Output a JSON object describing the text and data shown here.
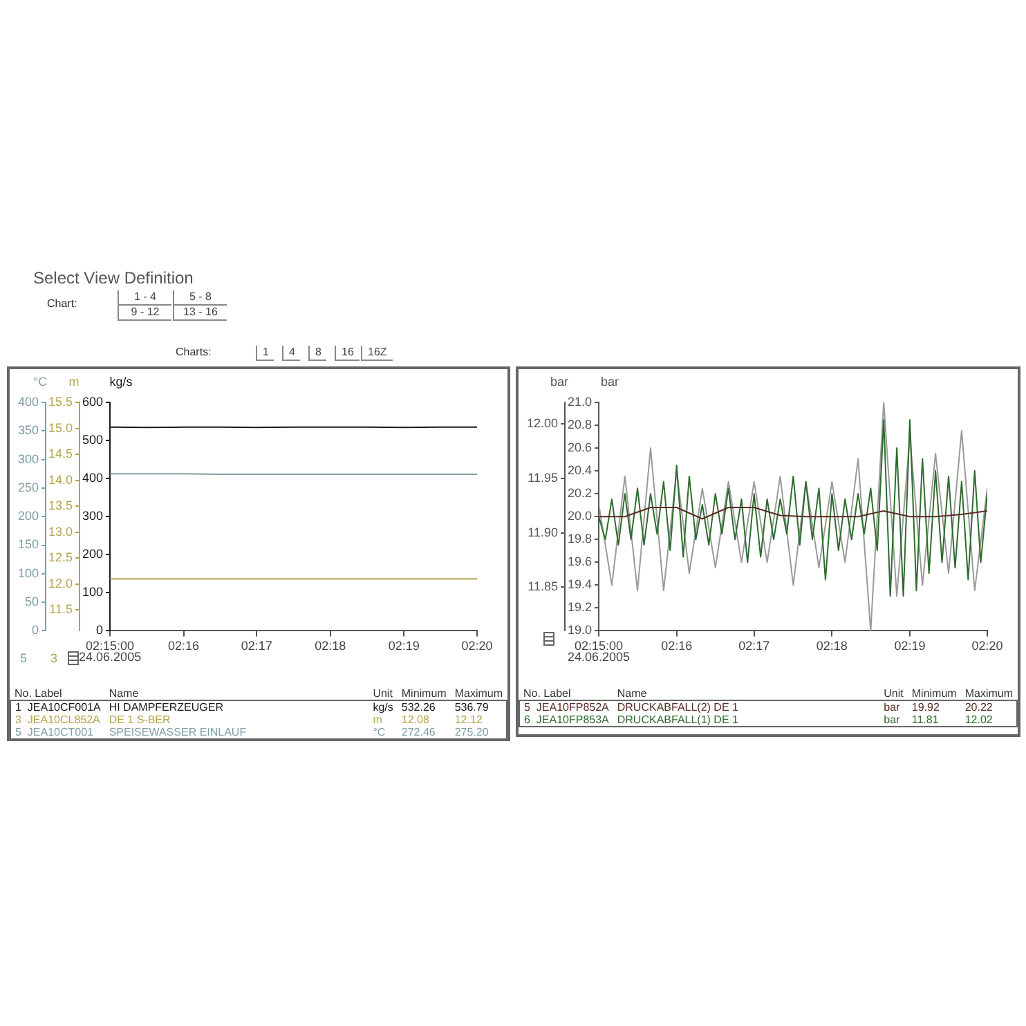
{
  "chart_data": [
    {
      "type": "other",
      "title": "Select View Definition",
      "annotations": [
        "Chart:",
        "1 - 4",
        "5 - 8",
        "9 - 12",
        "13 - 16",
        "Charts:",
        "1",
        "4",
        "8",
        "16",
        "16Z"
      ]
    },
    {
      "type": "line",
      "ylabel": "kg/s",
      "y2label": "m",
      "y3label": "°C",
      "legend": "bottom",
      "x": [
        2.25,
        2.2583,
        2.2667,
        2.275,
        2.2833,
        2.2917,
        2.3,
        2.3083,
        2.3167,
        2.325,
        2.3333
      ],
      "xlim": [
        2.25,
        2.3333
      ],
      "xticks": [
        {
          "value": 2.25,
          "label": "02:15:00"
        },
        {
          "value": 2.2667,
          "label": "02:16"
        },
        {
          "value": 2.2833,
          "label": "02:17"
        },
        {
          "value": 2.3,
          "label": "02:18"
        },
        {
          "value": 2.3167,
          "label": "02:19"
        },
        {
          "value": 2.3333,
          "label": "02:20"
        }
      ],
      "ylim": [
        0,
        600
      ],
      "yticks": [
        0,
        100,
        200,
        300,
        400,
        500,
        600
      ],
      "y2lim": [
        11.1,
        15.5
      ],
      "y2ticks": [
        11.5,
        {
          "value": 12,
          "label": "12.0"
        },
        12.5,
        {
          "value": 13,
          "label": "13.0"
        },
        13.5,
        {
          "value": 14,
          "label": "14.0"
        },
        14.5,
        {
          "value": 15,
          "label": "15.0"
        },
        15.5
      ],
      "y3lim": [
        0,
        400
      ],
      "y3ticks": [
        0,
        50,
        100,
        150,
        200,
        250,
        300,
        350,
        400
      ],
      "series": [
        {
          "name": "HI DAMPFERZEUGER",
          "color": "#1a1a1a",
          "values": [
            535,
            534,
            535,
            535,
            534,
            535,
            535,
            535,
            534,
            535,
            535
          ]
        },
        {
          "name": "DE 1 S-BER",
          "color": "#b3a64e",
          "axis": "y2",
          "values": [
            12.1,
            12.1,
            12.1,
            12.1,
            12.1,
            12.1,
            12.1,
            12.1,
            12.1,
            12.1,
            12.1
          ]
        },
        {
          "name": "SPEISEWASSER EINLAUF",
          "color": "#7f9ea3",
          "axis": "y3",
          "values": [
            275,
            275,
            275,
            274,
            274,
            274,
            274,
            274,
            274,
            274,
            274
          ]
        }
      ],
      "annotations": [
        "No.",
        "Label",
        "Name",
        "Unit",
        "Minimum",
        "Maximum",
        "1",
        "JEA10CF001A",
        "kg/s",
        "532.26",
        "536.79",
        "3",
        "JEA10CL852A",
        "m",
        "12.08",
        "12.12",
        "5",
        "JEA10CT001",
        "°C",
        "272.46",
        "275.20",
        "24.06.2005",
        "5",
        "3"
      ]
    },
    {
      "type": "line",
      "ylabel": "bar",
      "y2label": "bar",
      "legend": "bottom",
      "xlim": [
        2.25,
        2.3333
      ],
      "xticks": [
        {
          "value": 2.25,
          "label": "02:15:00"
        },
        {
          "value": 2.2667,
          "label": "02:16"
        },
        {
          "value": 2.2833,
          "label": "02:17"
        },
        {
          "value": 2.3,
          "label": "02:18"
        },
        {
          "value": 2.3167,
          "label": "02:19"
        },
        {
          "value": 2.3333,
          "label": "02:20"
        }
      ],
      "ylim": [
        19,
        21
      ],
      "yticks": [
        {
          "value": 19,
          "label": "19.0"
        },
        19.2,
        19.4,
        19.6,
        19.8,
        {
          "value": 20,
          "label": "20.0"
        },
        20.2,
        20.4,
        20.6,
        20.8,
        {
          "value": 21,
          "label": "21.0"
        }
      ],
      "y2lim": [
        11.81,
        12.02
      ],
      "y2ticks": [
        11.85,
        {
          "value": 11.9,
          "label": "11.90"
        },
        11.95,
        {
          "value": 12,
          "label": "12.00"
        }
      ],
      "series": [
        {
          "name": "DRUCKABFALL(2) DE 1",
          "color": "#5a2e22",
          "x": [
            2.25,
            2.2556,
            2.2611,
            2.2667,
            2.2722,
            2.2778,
            2.2833,
            2.2889,
            2.2944,
            2.3,
            2.3056,
            2.3111,
            2.3167,
            2.3222,
            2.3278,
            2.3333
          ],
          "values": [
            20.0,
            20.0,
            20.08,
            20.08,
            19.98,
            20.08,
            20.08,
            20.01,
            20.0,
            20.0,
            20.0,
            20.05,
            20.0,
            20.0,
            20.02,
            20.05
          ]
        },
        {
          "name": "DRUCKABFALL(1) DE 1",
          "color": "#2e6b2e",
          "axis": "y2",
          "x": [
            2.25,
            2.2514,
            2.2528,
            2.2542,
            2.2556,
            2.2569,
            2.2583,
            2.2597,
            2.2611,
            2.2625,
            2.2639,
            2.2653,
            2.2667,
            2.2681,
            2.2694,
            2.2708,
            2.2722,
            2.2736,
            2.275,
            2.2764,
            2.2778,
            2.2792,
            2.2806,
            2.2819,
            2.2833,
            2.2847,
            2.2861,
            2.2875,
            2.2889,
            2.2903,
            2.2917,
            2.2931,
            2.2944,
            2.2958,
            2.2972,
            2.2986,
            2.3,
            2.3014,
            2.3028,
            2.3042,
            2.3056,
            2.3069,
            2.3083,
            2.3097,
            2.3111,
            2.3125,
            2.3139,
            2.3153,
            2.3167,
            2.3181,
            2.3194,
            2.3208,
            2.3222,
            2.3236,
            2.325,
            2.3264,
            2.3278,
            2.3292,
            2.3306,
            2.3319,
            2.3333
          ],
          "values": [
            11.915,
            11.894,
            11.931,
            11.889,
            11.936,
            11.894,
            11.941,
            11.889,
            11.936,
            11.899,
            11.947,
            11.884,
            11.962,
            11.878,
            11.952,
            11.894,
            11.926,
            11.889,
            11.936,
            11.899,
            11.941,
            11.894,
            11.931,
            11.873,
            11.936,
            11.878,
            11.931,
            11.894,
            11.931,
            11.899,
            11.952,
            11.889,
            11.947,
            11.894,
            11.941,
            11.857,
            11.936,
            11.884,
            11.931,
            11.894,
            11.936,
            11.899,
            11.941,
            11.884,
            12.004,
            11.842,
            11.978,
            11.842,
            12.004,
            11.847,
            11.968,
            11.863,
            11.957,
            11.873,
            11.952,
            11.868,
            11.947,
            11.857,
            11.957,
            11.873,
            11.936
          ]
        },
        {
          "color": "#9a9a9a",
          "axis": "y2",
          "x": [
            2.25,
            2.2528,
            2.2556,
            2.2583,
            2.2611,
            2.2639,
            2.2667,
            2.2694,
            2.2722,
            2.275,
            2.2778,
            2.2806,
            2.2833,
            2.2861,
            2.2889,
            2.2917,
            2.2944,
            2.2972,
            2.3,
            2.3028,
            2.3056,
            2.3083,
            2.3111,
            2.3139,
            2.3167,
            2.3194,
            2.3222,
            2.325,
            2.3278,
            2.3306,
            2.3333
          ],
          "values": [
            11.926,
            11.852,
            11.952,
            11.847,
            11.978,
            11.847,
            11.957,
            11.863,
            11.941,
            11.868,
            11.947,
            11.873,
            11.947,
            11.873,
            11.952,
            11.852,
            11.947,
            11.868,
            11.947,
            11.873,
            11.968,
            11.81,
            12.02,
            11.842,
            11.989,
            11.852,
            11.973,
            11.863,
            11.994,
            11.847,
            11.941
          ]
        }
      ],
      "annotations": [
        "No.",
        "Label",
        "Name",
        "Unit",
        "Minimum",
        "Maximum",
        "5",
        "JEA10FP852A",
        "bar",
        "19.92",
        "20.22",
        "6",
        "JEA10FP853A",
        "bar",
        "11.81",
        "12.02",
        "24.06.2005"
      ]
    }
  ]
}
